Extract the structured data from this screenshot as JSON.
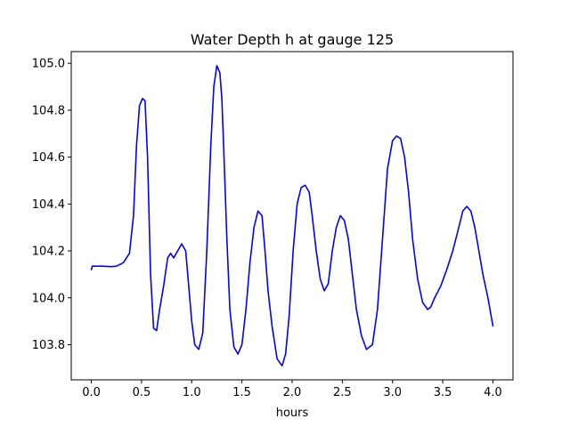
{
  "chart_data": {
    "type": "line",
    "title": "Water Depth h at gauge 125",
    "xlabel": "hours",
    "ylabel": "",
    "xlim": [
      -0.2,
      4.2
    ],
    "ylim": [
      103.65,
      105.05
    ],
    "xticks": [
      0.0,
      0.5,
      1.0,
      1.5,
      2.0,
      2.5,
      3.0,
      3.5,
      4.0
    ],
    "xtick_labels": [
      "0.0",
      "0.5",
      "1.0",
      "1.5",
      "2.0",
      "2.5",
      "3.0",
      "3.5",
      "4.0"
    ],
    "yticks": [
      103.8,
      104.0,
      104.2,
      104.4,
      104.6,
      104.8,
      105.0
    ],
    "ytick_labels": [
      "103.8",
      "104.0",
      "104.2",
      "104.4",
      "104.6",
      "104.8",
      "105.0"
    ],
    "grid": false,
    "legend": "none",
    "series": [
      {
        "color": "#0000ff",
        "x": [
          0.0,
          0.01,
          0.1,
          0.2,
          0.25,
          0.32,
          0.38,
          0.42,
          0.45,
          0.48,
          0.51,
          0.535,
          0.56,
          0.59,
          0.62,
          0.65,
          0.68,
          0.72,
          0.76,
          0.79,
          0.82,
          0.86,
          0.9,
          0.94,
          0.97,
          1.0,
          1.03,
          1.07,
          1.11,
          1.15,
          1.19,
          1.22,
          1.25,
          1.28,
          1.3,
          1.32,
          1.35,
          1.38,
          1.42,
          1.46,
          1.5,
          1.54,
          1.58,
          1.62,
          1.66,
          1.7,
          1.73,
          1.76,
          1.8,
          1.85,
          1.9,
          1.935,
          1.97,
          2.01,
          2.05,
          2.09,
          2.13,
          2.17,
          2.2,
          2.24,
          2.28,
          2.32,
          2.36,
          2.4,
          2.44,
          2.48,
          2.52,
          2.56,
          2.6,
          2.64,
          2.69,
          2.74,
          2.8,
          2.85,
          2.9,
          2.95,
          3.0,
          3.04,
          3.08,
          3.12,
          3.16,
          3.2,
          3.25,
          3.3,
          3.35,
          3.38,
          3.42,
          3.48,
          3.54,
          3.6,
          3.66,
          3.7,
          3.74,
          3.78,
          3.82,
          3.86,
          3.9,
          3.95,
          4.0
        ],
        "y": [
          104.12,
          104.135,
          104.135,
          104.133,
          104.135,
          104.15,
          104.19,
          104.35,
          104.65,
          104.82,
          104.85,
          104.84,
          104.6,
          104.1,
          103.87,
          103.86,
          103.95,
          104.05,
          104.17,
          104.19,
          104.17,
          104.2,
          104.23,
          104.2,
          104.05,
          103.9,
          103.8,
          103.78,
          103.85,
          104.2,
          104.65,
          104.9,
          104.99,
          104.96,
          104.85,
          104.62,
          104.25,
          103.95,
          103.79,
          103.76,
          103.8,
          103.95,
          104.15,
          104.3,
          104.37,
          104.35,
          104.2,
          104.03,
          103.88,
          103.74,
          103.71,
          103.76,
          103.92,
          104.2,
          104.4,
          104.47,
          104.48,
          104.45,
          104.35,
          104.2,
          104.08,
          104.03,
          104.06,
          104.2,
          104.3,
          104.35,
          104.33,
          104.25,
          104.1,
          103.95,
          103.84,
          103.78,
          103.8,
          103.95,
          104.25,
          104.55,
          104.67,
          104.69,
          104.68,
          104.6,
          104.45,
          104.25,
          104.08,
          103.98,
          103.95,
          103.96,
          104.0,
          104.05,
          104.12,
          104.2,
          104.3,
          104.37,
          104.39,
          104.37,
          104.3,
          104.2,
          104.1,
          104.0,
          103.88
        ]
      }
    ]
  }
}
